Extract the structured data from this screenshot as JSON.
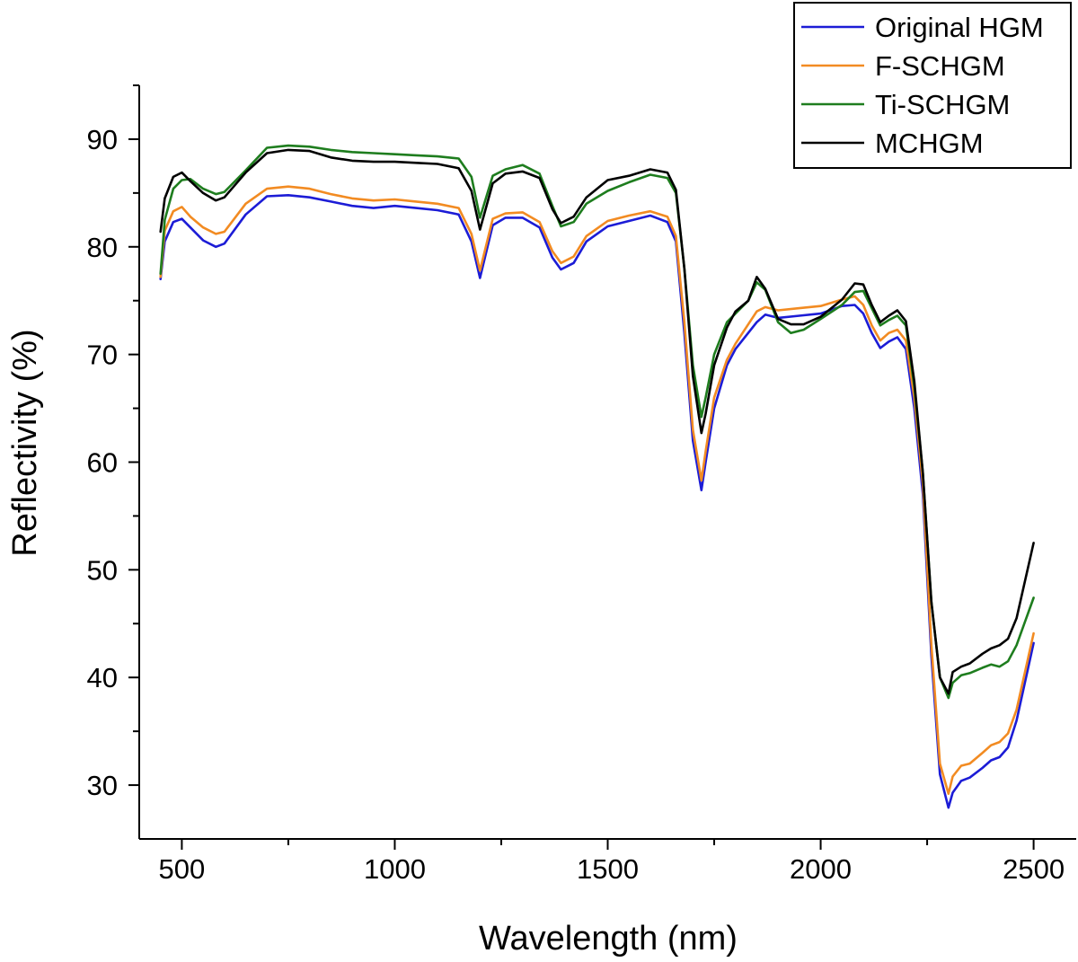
{
  "chart_data": {
    "type": "line",
    "title": "",
    "xlabel": "Wavelength (nm)",
    "ylabel": "Reflectivity (%)",
    "xlim": [
      400,
      2600
    ],
    "ylim": [
      25,
      95
    ],
    "xticks": [
      500,
      1000,
      1500,
      2000,
      2500
    ],
    "yticks": [
      30,
      40,
      50,
      60,
      70,
      80,
      90
    ],
    "grid": false,
    "legend_position": "top-right",
    "series": [
      {
        "name": "Original HGM",
        "color": "#1c1cd6",
        "x": [
          450,
          460,
          480,
          500,
          520,
          550,
          580,
          600,
          650,
          700,
          750,
          800,
          850,
          900,
          950,
          1000,
          1050,
          1100,
          1150,
          1180,
          1200,
          1230,
          1260,
          1300,
          1340,
          1370,
          1390,
          1420,
          1450,
          1500,
          1550,
          1600,
          1640,
          1660,
          1680,
          1700,
          1720,
          1730,
          1750,
          1780,
          1800,
          1850,
          1870,
          1900,
          1950,
          2000,
          2050,
          2080,
          2100,
          2120,
          2140,
          2160,
          2180,
          2200,
          2220,
          2240,
          2260,
          2280,
          2300,
          2310,
          2330,
          2350,
          2380,
          2400,
          2420,
          2440,
          2460,
          2500
        ],
        "y": [
          77,
          80.5,
          82.3,
          82.6,
          81.8,
          80.6,
          80,
          80.3,
          83,
          84.7,
          84.8,
          84.6,
          84.2,
          83.8,
          83.6,
          83.8,
          83.6,
          83.4,
          83,
          80.5,
          77.1,
          82,
          82.7,
          82.7,
          81.8,
          79,
          77.9,
          78.5,
          80.5,
          81.9,
          82.4,
          82.9,
          82.3,
          80.5,
          72,
          62,
          57.4,
          60,
          65,
          69,
          70.5,
          73,
          73.7,
          73.4,
          73.6,
          73.8,
          74.5,
          74.6,
          73.8,
          72,
          70.6,
          71.2,
          71.6,
          70.5,
          65,
          57,
          42,
          31,
          27.9,
          29.3,
          30.4,
          30.7,
          31.6,
          32.3,
          32.6,
          33.5,
          36,
          43.2
        ]
      },
      {
        "name": "F-SCHGM",
        "color": "#f28b22",
        "x": [
          450,
          460,
          480,
          500,
          520,
          550,
          580,
          600,
          650,
          700,
          750,
          800,
          850,
          900,
          950,
          1000,
          1050,
          1100,
          1150,
          1180,
          1200,
          1230,
          1260,
          1300,
          1340,
          1370,
          1390,
          1420,
          1450,
          1500,
          1550,
          1600,
          1640,
          1660,
          1680,
          1700,
          1720,
          1730,
          1750,
          1780,
          1800,
          1850,
          1870,
          1900,
          1950,
          2000,
          2050,
          2080,
          2100,
          2120,
          2140,
          2160,
          2180,
          2200,
          2220,
          2240,
          2260,
          2280,
          2300,
          2310,
          2330,
          2350,
          2380,
          2400,
          2420,
          2440,
          2460,
          2500
        ],
        "y": [
          77.2,
          81.5,
          83.3,
          83.7,
          82.8,
          81.8,
          81.2,
          81.4,
          84,
          85.4,
          85.6,
          85.4,
          84.9,
          84.5,
          84.3,
          84.4,
          84.2,
          84,
          83.6,
          81.2,
          77.8,
          82.6,
          83.1,
          83.2,
          82.3,
          79.6,
          78.5,
          79.1,
          81,
          82.4,
          82.9,
          83.3,
          82.8,
          81,
          73,
          63,
          58.3,
          61,
          66,
          69.5,
          71,
          74,
          74.4,
          74.1,
          74.3,
          74.5,
          75.1,
          75.4,
          74.6,
          72.7,
          71.3,
          72,
          72.3,
          71.3,
          66,
          58,
          43,
          32,
          29.2,
          30.8,
          31.8,
          32,
          33,
          33.7,
          34,
          34.8,
          37,
          44.1
        ]
      },
      {
        "name": "Ti-SCHGM",
        "color": "#1e7d1e",
        "x": [
          450,
          460,
          480,
          500,
          520,
          550,
          580,
          600,
          650,
          700,
          750,
          800,
          850,
          900,
          950,
          1000,
          1050,
          1100,
          1150,
          1180,
          1200,
          1230,
          1260,
          1300,
          1340,
          1370,
          1390,
          1420,
          1450,
          1500,
          1550,
          1600,
          1640,
          1660,
          1680,
          1700,
          1720,
          1730,
          1750,
          1780,
          1800,
          1830,
          1850,
          1870,
          1900,
          1930,
          1960,
          2000,
          2050,
          2080,
          2100,
          2120,
          2140,
          2160,
          2180,
          2200,
          2220,
          2240,
          2260,
          2280,
          2300,
          2310,
          2330,
          2350,
          2380,
          2400,
          2420,
          2440,
          2460,
          2500
        ],
        "y": [
          77.5,
          82.5,
          85.4,
          86.2,
          86.3,
          85.4,
          84.9,
          85.1,
          87.1,
          89.2,
          89.4,
          89.3,
          89,
          88.8,
          88.7,
          88.6,
          88.5,
          88.4,
          88.2,
          86.5,
          82.7,
          86.6,
          87.2,
          87.6,
          86.8,
          83.8,
          81.9,
          82.3,
          84,
          85.2,
          86,
          86.7,
          86.4,
          85,
          78,
          69,
          64.2,
          66,
          70,
          73,
          73.8,
          75,
          76.7,
          76,
          73,
          72,
          72.3,
          73.3,
          74.6,
          75.8,
          75.9,
          74.3,
          72.7,
          73.2,
          73.6,
          72.7,
          67,
          59,
          47,
          40,
          38.1,
          39.5,
          40.2,
          40.4,
          40.9,
          41.2,
          41,
          41.5,
          43,
          47.4
        ]
      },
      {
        "name": "MCHGM",
        "color": "#000000",
        "x": [
          450,
          460,
          480,
          500,
          520,
          550,
          580,
          600,
          650,
          700,
          750,
          800,
          850,
          900,
          950,
          1000,
          1050,
          1100,
          1150,
          1180,
          1200,
          1230,
          1260,
          1300,
          1340,
          1370,
          1390,
          1420,
          1450,
          1500,
          1550,
          1600,
          1640,
          1660,
          1680,
          1700,
          1720,
          1730,
          1750,
          1780,
          1800,
          1830,
          1850,
          1870,
          1900,
          1930,
          1960,
          2000,
          2050,
          2080,
          2100,
          2120,
          2140,
          2160,
          2180,
          2200,
          2220,
          2240,
          2260,
          2280,
          2300,
          2310,
          2330,
          2350,
          2380,
          2400,
          2420,
          2440,
          2460,
          2500
        ],
        "y": [
          81.4,
          84.5,
          86.5,
          86.9,
          86.1,
          85,
          84.3,
          84.6,
          86.9,
          88.7,
          89,
          88.9,
          88.3,
          88,
          87.9,
          87.9,
          87.8,
          87.7,
          87.3,
          85.2,
          81.6,
          85.9,
          86.8,
          87,
          86.4,
          83.5,
          82.2,
          82.8,
          84.6,
          86.2,
          86.6,
          87.2,
          86.9,
          85.3,
          78,
          68,
          62.7,
          64.5,
          69,
          72.5,
          74,
          75,
          77.2,
          76.1,
          73.3,
          72.8,
          72.8,
          73.5,
          75.1,
          76.6,
          76.5,
          74.6,
          73,
          73.6,
          74.1,
          73.1,
          67.5,
          59,
          47,
          40,
          38.5,
          40.5,
          41,
          41.3,
          42.2,
          42.7,
          43,
          43.6,
          45.5,
          52.5
        ]
      }
    ]
  }
}
